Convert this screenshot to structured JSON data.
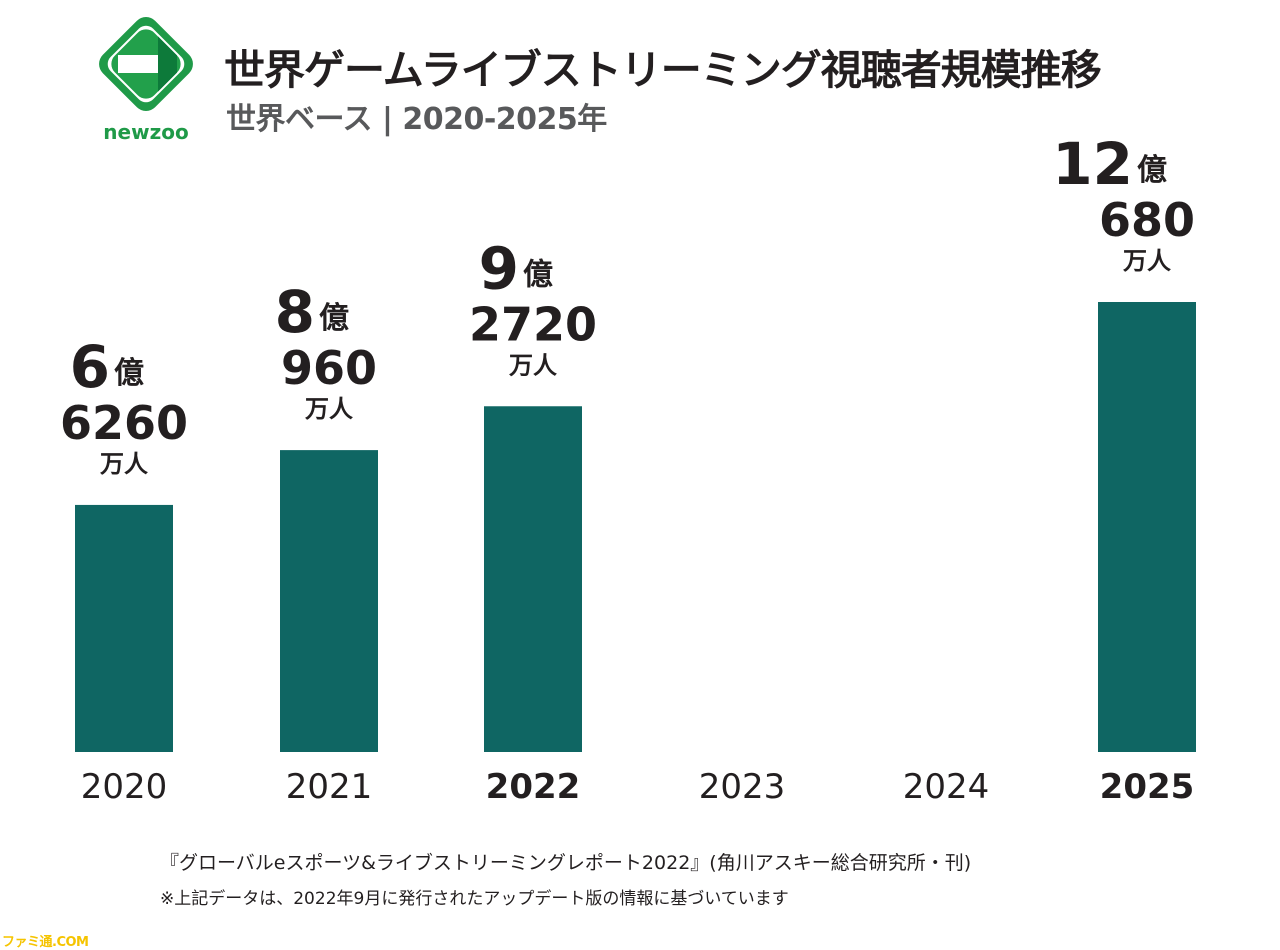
{
  "brand": {
    "name": "newzoo"
  },
  "header": {
    "title": "世界ゲームライブストリーミング視聴者規模推移",
    "subtitle": "世界ベース | 2020-2025年"
  },
  "chart_data": {
    "type": "bar",
    "title": "世界ゲームライブストリーミング視聴者規模推移",
    "subtitle": "世界ベース | 2020-2025年",
    "unit": "万人",
    "categories": [
      "2020",
      "2021",
      "2022",
      "2023",
      "2024",
      "2025"
    ],
    "values": [
      66260,
      80960,
      92720,
      null,
      null,
      120680
    ],
    "bold_categories": [
      "2022",
      "2025"
    ],
    "data_labels": [
      {
        "oku": "6",
        "oku_unit": "億",
        "man": "6260",
        "man_unit": "万人"
      },
      {
        "oku": "8",
        "oku_unit": "億",
        "man": "960",
        "man_unit": "万人"
      },
      {
        "oku": "9",
        "oku_unit": "億",
        "man": "2720",
        "man_unit": "万人"
      },
      null,
      null,
      {
        "oku": "12",
        "oku_unit": "億",
        "man": "680",
        "man_unit": "万人"
      }
    ],
    "bar_color": "#0f6663",
    "grid": false,
    "legend": "none"
  },
  "footer": {
    "source": "『グローバルeスポーツ&ライブストリーミングレポート2022』(角川アスキー総合研究所・刊)",
    "note": "※上記データは、2022年9月に発行されたアップデート版の情報に基づいています"
  },
  "watermark": "ファミ通.COM",
  "colors": {
    "accent_green": "#1f9a48",
    "bar": "#0f6663",
    "text": "#231f20",
    "subtext": "#58595b"
  }
}
